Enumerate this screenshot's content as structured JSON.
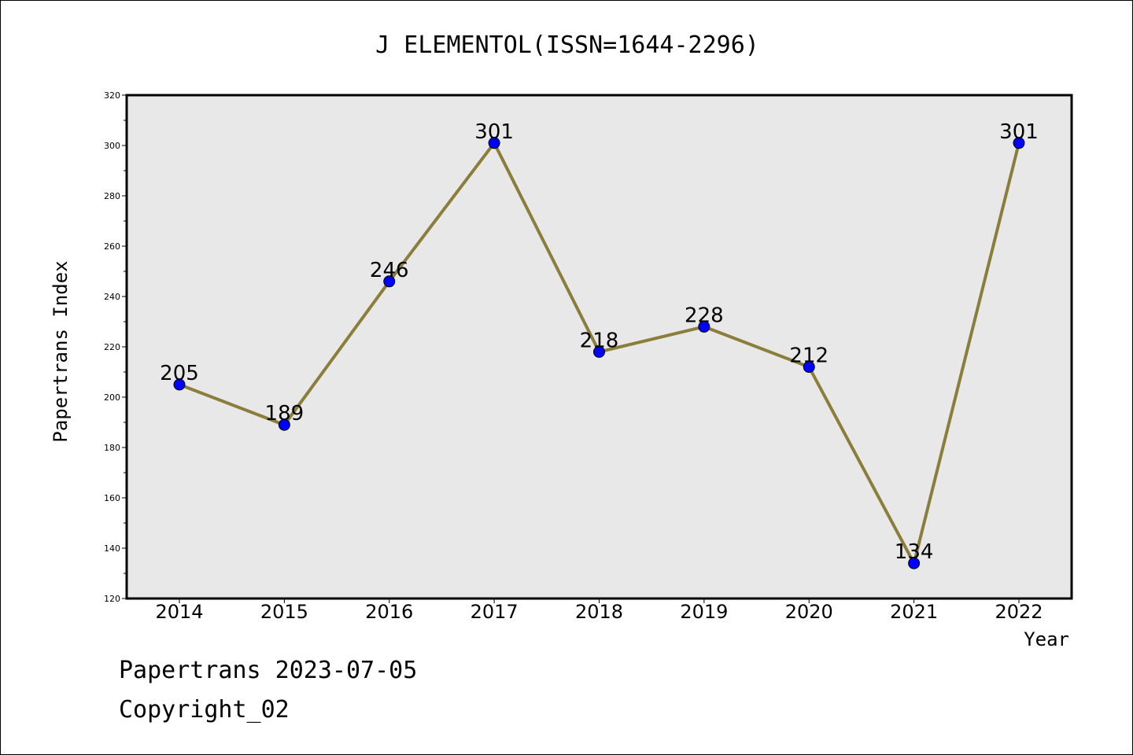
{
  "chart_data": {
    "type": "line",
    "title": "J ELEMENTOL(ISSN=1644-2296)",
    "xlabel": "Year",
    "ylabel": "Papertrans Index",
    "categories": [
      "2014",
      "2015",
      "2016",
      "2017",
      "2018",
      "2019",
      "2020",
      "2021",
      "2022"
    ],
    "values": [
      205,
      189,
      246,
      301,
      218,
      228,
      212,
      134,
      301
    ],
    "data_labels": [
      "205",
      "189",
      "246",
      "301",
      "218",
      "228",
      "212",
      "134",
      "301"
    ],
    "ylim": [
      120,
      320
    ],
    "yticks": [
      120,
      140,
      160,
      180,
      200,
      220,
      240,
      260,
      280,
      300,
      320
    ],
    "grid": false,
    "legend": "none",
    "colors": {
      "line": "#8B7D3A",
      "marker": "#0000FF",
      "plot_background": "#E8E8E8"
    }
  },
  "footer": {
    "line1": "Papertrans 2023-07-05",
    "line2": "Copyright_02"
  }
}
